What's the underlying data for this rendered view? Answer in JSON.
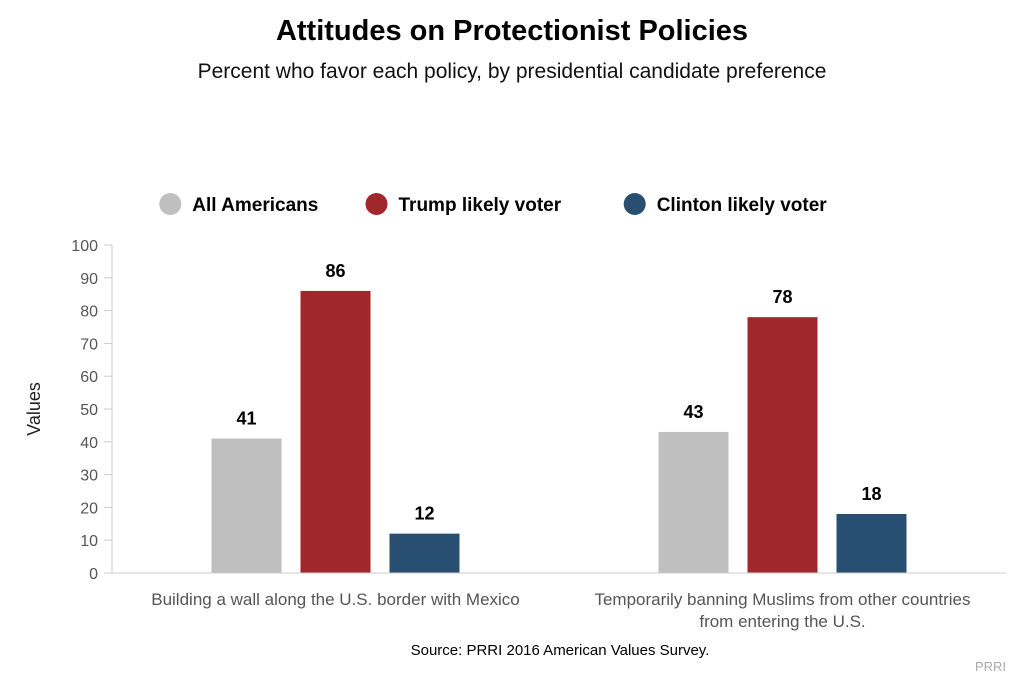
{
  "chart_data": {
    "type": "bar",
    "title": "Attitudes on Protectionist Policies",
    "subtitle": "Percent who favor each policy, by presidential candidate preference",
    "ylabel": "Values",
    "xlabel": "",
    "ylim": [
      0,
      100
    ],
    "yticks": [
      0,
      10,
      20,
      30,
      40,
      50,
      60,
      70,
      80,
      90,
      100
    ],
    "categories": [
      [
        "Building a wall along the U.S. border with Mexico"
      ],
      [
        "Temporarily banning Muslims from other countries",
        "from entering the U.S."
      ]
    ],
    "series": [
      {
        "name": "All Americans",
        "color": "#bfbfbf",
        "values": [
          41,
          43
        ]
      },
      {
        "name": "Trump likely voter",
        "color": "#a0282d",
        "values": [
          86,
          78
        ]
      },
      {
        "name": "Clinton likely voter",
        "color": "#284f72",
        "values": [
          12,
          18
        ]
      }
    ],
    "legend": "top",
    "grid": false
  },
  "source": "Source: PRRI 2016 American Values Survey.",
  "credit": "PRRI"
}
